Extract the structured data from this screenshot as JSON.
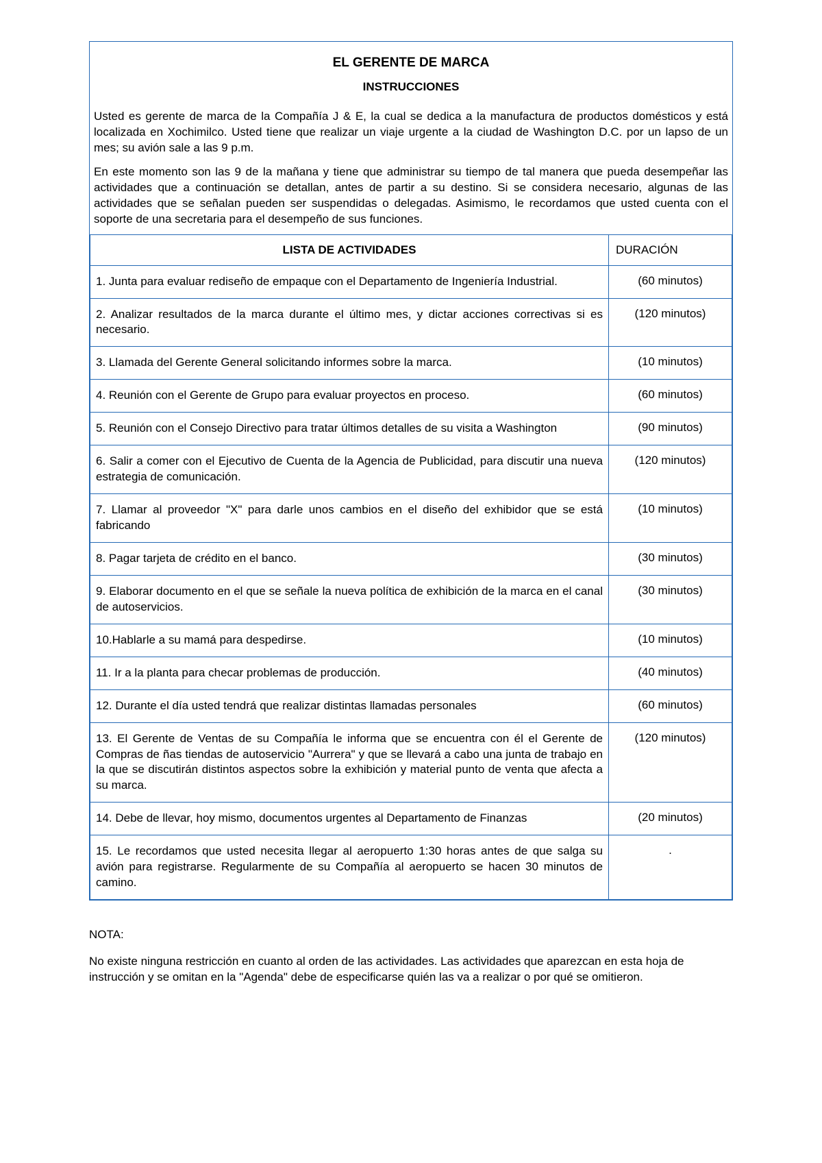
{
  "colors": {
    "border": "#2469b5",
    "text": "#000000",
    "background": "#ffffff"
  },
  "typography": {
    "body_font": "Arial",
    "body_size_pt": 13,
    "title_weight": "bold"
  },
  "header": {
    "title": "EL GERENTE DE MARCA",
    "subtitle": "INSTRUCCIONES"
  },
  "intro_paragraphs": [
    " Usted es gerente de marca de la Compañía J & E, la cual se dedica a la manufactura de productos domésticos y está localizada en Xochimilco. Usted tiene que realizar un viaje urgente a la ciudad de Washington D.C. por un lapso de un mes; su avión sale a las 9 p.m.",
    "En este momento son las 9 de la mañana y tiene que administrar su tiempo de tal manera que pueda desempeñar las actividades que a continuación se detallan, antes de partir a su destino. Si se considera necesario, algunas de las actividades que se señalan pueden ser suspendidas o delegadas. Asimismo, le recordamos que usted cuenta con el soporte de una secretaria para el desempeño de sus funciones."
  ],
  "table": {
    "headers": {
      "activities": "LISTA DE ACTIVIDADES",
      "duration": "DURACIÓN"
    },
    "col_widths": {
      "activity_pct": 78,
      "duration_pct": 22
    },
    "rows": [
      {
        "activity": "1. Junta para evaluar rediseño de empaque con el Departamento de Ingeniería Industrial.",
        "duration": "(60 minutos)"
      },
      {
        "activity": "2. Analizar resultados de la marca durante el último mes, y dictar acciones correctivas si es necesario.",
        "duration": "(120 minutos)"
      },
      {
        "activity": "3. Llamada del Gerente General solicitando informes sobre la marca.",
        "duration": "(10 minutos)"
      },
      {
        "activity": "4. Reunión con el Gerente de Grupo para evaluar proyectos en proceso.",
        "duration": "(60 minutos)"
      },
      {
        "activity": "5. Reunión con el Consejo Directivo para tratar últimos detalles de su visita a Washington",
        "duration": "(90 minutos)"
      },
      {
        "activity": "6. Salir a comer con el Ejecutivo de Cuenta de la Agencia de Publicidad, para discutir una nueva estrategia de comunicación.",
        "duration": "(120 minutos)"
      },
      {
        "activity": "7. Llamar al proveedor \"X\" para darle unos cambios en el diseño del exhibidor que se está fabricando",
        "duration": "(10 minutos)"
      },
      {
        "activity": "8. Pagar tarjeta de crédito en el banco.",
        "duration": "(30 minutos)"
      },
      {
        "activity": "9. Elaborar documento en el que se señale la nueva política de exhibición de la marca en el canal de autoservicios.",
        "duration": "(30 minutos)"
      },
      {
        "activity": "10.Hablarle a su mamá para despedirse.",
        "duration": "(10 minutos)"
      },
      {
        "activity": "11. Ir a la planta para checar problemas de producción.",
        "duration": "(40 minutos)"
      },
      {
        "activity": "12. Durante el día usted tendrá que realizar distintas llamadas personales",
        "duration": "(60 minutos)"
      },
      {
        "activity": "13. El Gerente de Ventas de su Compañía le informa que se encuentra con él el Gerente de Compras de ñas tiendas de autoservicio \"Aurrera\" y que se llevará a cabo una junta de trabajo en la que se discutirán distintos aspectos sobre la exhibición y material punto de venta que afecta a su marca.",
        "duration": "(120 minutos)"
      },
      {
        "activity": "14. Debe de llevar, hoy mismo, documentos urgentes al Departamento de Finanzas",
        "duration": "(20 minutos)"
      },
      {
        "activity": "15. Le recordamos que usted necesita llegar al aeropuerto 1:30 horas antes de que salga su avión para registrarse. Regularmente de su Compañía al aeropuerto se hacen 30 minutos de camino.",
        "duration": "."
      }
    ]
  },
  "footer": {
    "nota_label": "NOTA:",
    "nota_text": "No existe ninguna restricción en cuanto al orden de las actividades. Las actividades que aparezcan en esta hoja de instrucción y se omitan en la \"Agenda\" debe de especificarse quién las va a realizar o por qué se omitieron."
  }
}
